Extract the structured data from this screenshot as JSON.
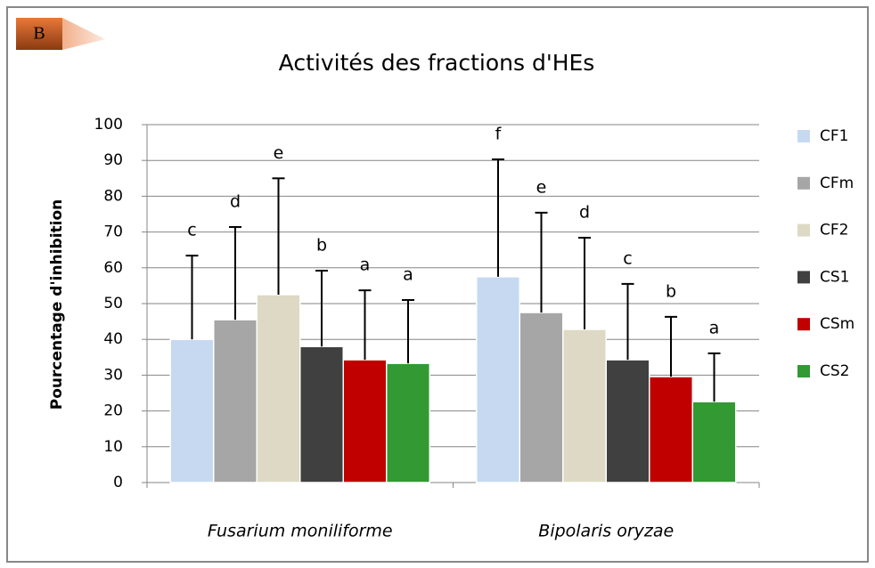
{
  "chart_data": {
    "type": "bar",
    "panel_label": "B",
    "title": "Activités des fractions d'HEs",
    "ylabel": "Pourcentage d'inhibition",
    "categories": [
      "Fusarium moniliforme",
      "Bipolaris oryzae"
    ],
    "series": [
      {
        "name": "CF1",
        "color": "#c6d9f1",
        "values": [
          40,
          57.5
        ],
        "errors": [
          23.4,
          32.8
        ],
        "labels": [
          "c",
          "f"
        ]
      },
      {
        "name": "CFm",
        "color": "#a6a6a6",
        "values": [
          45.5,
          47.5
        ],
        "errors": [
          25.9,
          27.9
        ],
        "labels": [
          "d",
          "e"
        ]
      },
      {
        "name": "CF2",
        "color": "#ddd9c4",
        "values": [
          52.5,
          42.8
        ],
        "errors": [
          32.5,
          25.6
        ],
        "labels": [
          "e",
          "d"
        ]
      },
      {
        "name": "CS1",
        "color": "#404040",
        "values": [
          38,
          34.3
        ],
        "errors": [
          21.2,
          21.2
        ],
        "labels": [
          "b",
          "c"
        ]
      },
      {
        "name": "CSm",
        "color": "#c00000",
        "values": [
          34.3,
          29.6
        ],
        "errors": [
          19.4,
          16.7
        ],
        "labels": [
          "a",
          "b"
        ]
      },
      {
        "name": "CS2",
        "color": "#339933",
        "values": [
          33.3,
          22.6
        ],
        "errors": [
          17.7,
          13.5
        ],
        "labels": [
          "a",
          "a"
        ]
      }
    ],
    "ylim": [
      0,
      100
    ],
    "yticks": [
      0,
      10,
      20,
      30,
      40,
      50,
      60,
      70,
      80,
      90,
      100
    ],
    "grid": true,
    "legend": "right"
  }
}
